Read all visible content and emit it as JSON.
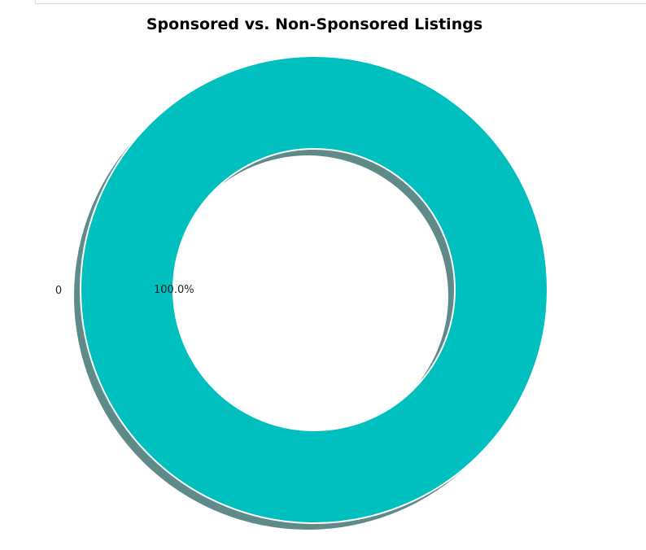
{
  "chart_data": {
    "type": "pie",
    "title": "Sponsored vs. Non-Sponsored Listings",
    "categories": [
      "0"
    ],
    "values": [
      100.0
    ],
    "pct_labels": [
      "100.0%"
    ],
    "donut": true,
    "shadow": true,
    "colors": {
      "slice": "#00bfbf",
      "shadow": "#5e8a8a",
      "edge": "#ffffff"
    }
  }
}
